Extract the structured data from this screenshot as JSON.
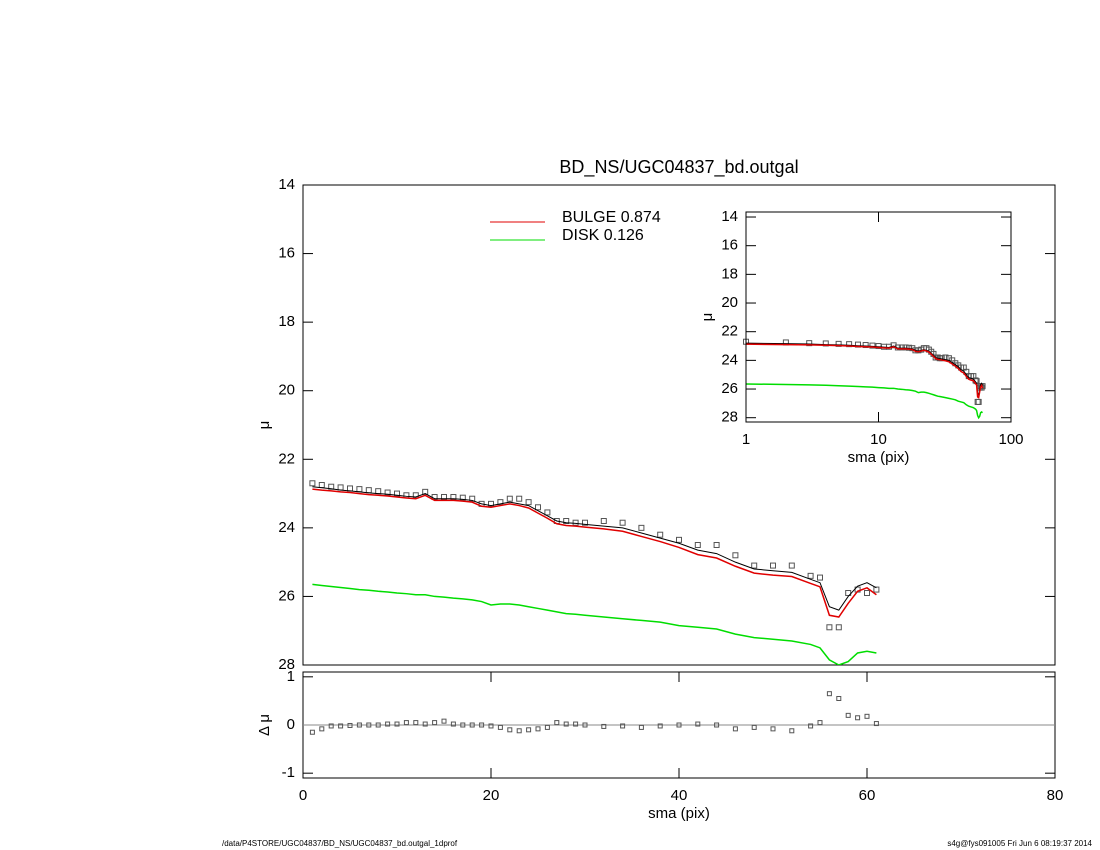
{
  "chart_data": [
    {
      "type": "line",
      "title": "BD_NS/UGC04837_bd.outgal",
      "ylabel": "μ",
      "y_inverted": true,
      "xlim": [
        0,
        80
      ],
      "ylim": [
        14,
        28
      ],
      "yticks": [
        14,
        16,
        18,
        20,
        22,
        24,
        26,
        28
      ],
      "x": [
        1,
        2,
        3,
        4,
        5,
        6,
        7,
        8,
        9,
        10,
        11,
        12,
        13,
        14,
        15,
        16,
        17,
        18,
        19,
        20,
        21,
        22,
        23,
        24,
        25,
        26,
        27,
        28,
        29,
        30,
        32,
        34,
        36,
        38,
        40,
        42,
        44,
        46,
        48,
        50,
        52,
        54,
        55,
        56,
        57,
        58,
        59,
        60,
        61
      ],
      "series": [
        {
          "style": "points",
          "color": "#555555",
          "values": [
            22.7,
            22.75,
            22.8,
            22.82,
            22.85,
            22.87,
            22.9,
            22.93,
            22.97,
            23.0,
            23.05,
            23.05,
            22.95,
            23.1,
            23.1,
            23.1,
            23.12,
            23.15,
            23.3,
            23.3,
            23.25,
            23.15,
            23.15,
            23.25,
            23.4,
            23.55,
            23.8,
            23.8,
            23.85,
            23.85,
            23.8,
            23.85,
            24.0,
            24.2,
            24.35,
            24.5,
            24.5,
            24.8,
            25.1,
            25.1,
            25.1,
            25.4,
            25.45,
            26.9,
            26.9,
            25.9,
            25.8,
            25.9,
            25.8
          ]
        },
        {
          "style": "line",
          "color": "#000000",
          "values": [
            22.8,
            22.83,
            22.86,
            22.9,
            22.92,
            22.95,
            22.98,
            23.0,
            23.02,
            23.05,
            23.08,
            23.1,
            23.0,
            23.15,
            23.15,
            23.15,
            23.17,
            23.2,
            23.3,
            23.35,
            23.3,
            23.25,
            23.3,
            23.35,
            23.5,
            23.65,
            23.8,
            23.85,
            23.87,
            23.9,
            23.95,
            24.0,
            24.15,
            24.3,
            24.45,
            24.65,
            24.75,
            25.0,
            25.2,
            25.25,
            25.3,
            25.5,
            25.6,
            26.3,
            26.4,
            26.0,
            25.7,
            25.6,
            25.75
          ]
        },
        {
          "style": "line",
          "name": "BULGE  0.874",
          "color": "#e00000",
          "values": [
            22.87,
            22.9,
            22.92,
            22.95,
            22.97,
            23.0,
            23.03,
            23.05,
            23.07,
            23.1,
            23.13,
            23.15,
            23.05,
            23.2,
            23.2,
            23.2,
            23.22,
            23.25,
            23.37,
            23.4,
            23.35,
            23.3,
            23.35,
            23.42,
            23.57,
            23.72,
            23.88,
            23.93,
            23.95,
            23.98,
            24.03,
            24.1,
            24.25,
            24.4,
            24.57,
            24.78,
            24.88,
            25.12,
            25.32,
            25.38,
            25.42,
            25.62,
            25.72,
            26.55,
            26.6,
            26.2,
            25.85,
            25.75,
            25.95
          ]
        },
        {
          "style": "line",
          "name": "DISK  0.126",
          "color": "#00dd00",
          "values": [
            25.65,
            25.68,
            25.71,
            25.74,
            25.77,
            25.8,
            25.82,
            25.85,
            25.87,
            25.9,
            25.92,
            25.95,
            25.95,
            26.0,
            26.02,
            26.05,
            26.07,
            26.1,
            26.15,
            26.25,
            26.22,
            26.22,
            26.25,
            26.3,
            26.35,
            26.4,
            26.45,
            26.5,
            26.52,
            26.55,
            26.6,
            26.65,
            26.7,
            26.75,
            26.85,
            26.9,
            26.95,
            27.1,
            27.2,
            27.25,
            27.3,
            27.4,
            27.5,
            27.85,
            28.0,
            27.9,
            27.65,
            27.6,
            27.65
          ]
        }
      ]
    },
    {
      "type": "scatter",
      "ylabel": "Δ μ",
      "xlabel": "sma (pix)",
      "xlim": [
        0,
        80
      ],
      "xticks": [
        0,
        20,
        40,
        60,
        80
      ],
      "ylim": [
        -1.1,
        1.1
      ],
      "yticks": [
        -1,
        0,
        1
      ],
      "color": "#555555",
      "values": [
        -0.15,
        -0.08,
        -0.02,
        -0.02,
        -0.01,
        0,
        0,
        0,
        0.02,
        0.02,
        0.05,
        0.05,
        0.02,
        0.05,
        0.08,
        0.02,
        0,
        0,
        0,
        -0.02,
        -0.05,
        -0.1,
        -0.12,
        -0.1,
        -0.08,
        -0.05,
        0.05,
        0.02,
        0.02,
        0.0,
        -0.03,
        -0.02,
        -0.05,
        -0.02,
        0,
        0.02,
        0.0,
        -0.08,
        -0.05,
        -0.08,
        -0.12,
        -0.02,
        0.05,
        0.65,
        0.55,
        0.2,
        0.15,
        0.18,
        0.03
      ]
    },
    {
      "type": "line",
      "xlabel": "sma (pix)",
      "ylabel": "μ",
      "log_x": true,
      "y_inverted": true,
      "xlim": [
        1,
        100
      ],
      "xticks": [
        1,
        10,
        100
      ],
      "ylim": [
        13.65,
        28.3
      ],
      "yticks": [
        14,
        16,
        18,
        20,
        22,
        24,
        26,
        28
      ]
    }
  ],
  "footer": {
    "left": "/data/P4STORE/UGC04837/BD_NS/UGC04837_bd.outgal_1dprof",
    "right": "s4g@fys091005  Fri Jun  6 08:19:37 2014"
  }
}
